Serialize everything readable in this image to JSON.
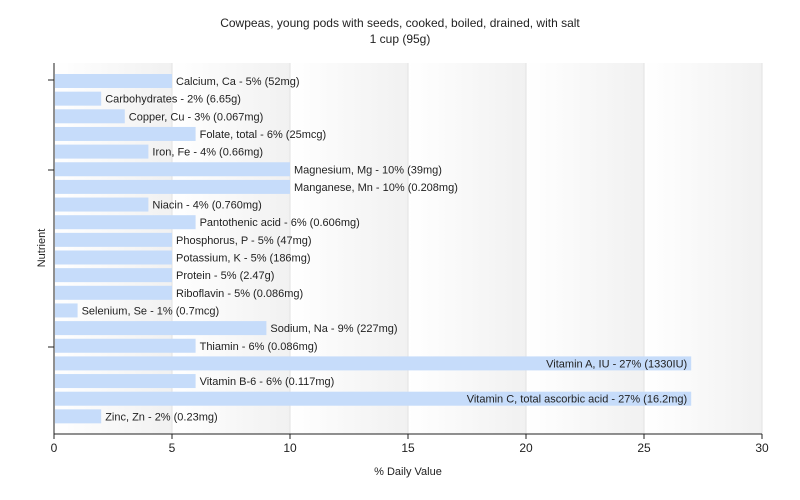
{
  "chart_data": {
    "type": "bar",
    "orientation": "horizontal",
    "title": "Cowpeas, young pods with seeds, cooked, boiled, drained, with salt",
    "subtitle": "1 cup (95g)",
    "xlabel": "% Daily Value",
    "ylabel": "Nutrient",
    "xlim": [
      0,
      30
    ],
    "xticks": [
      0,
      5,
      10,
      15,
      20,
      25,
      30
    ],
    "grid": "vertical",
    "bar_color": "#c6dcfa",
    "categories": [
      "Calcium, Ca",
      "Carbohydrates",
      "Copper, Cu",
      "Folate, total",
      "Iron, Fe",
      "Magnesium, Mg",
      "Manganese, Mn",
      "Niacin",
      "Pantothenic acid",
      "Phosphorus, P",
      "Potassium, K",
      "Protein",
      "Riboflavin",
      "Selenium, Se",
      "Sodium, Na",
      "Thiamin",
      "Vitamin A, IU",
      "Vitamin B-6",
      "Vitamin C, total ascorbic acid",
      "Zinc, Zn"
    ],
    "values": [
      5,
      2,
      3,
      6,
      4,
      10,
      10,
      4,
      6,
      5,
      5,
      5,
      5,
      1,
      9,
      6,
      27,
      6,
      27,
      2
    ],
    "labels": [
      "Calcium, Ca - 5% (52mg)",
      "Carbohydrates - 2% (6.65g)",
      "Copper, Cu - 3% (0.067mg)",
      "Folate, total - 6% (25mcg)",
      "Iron, Fe - 4% (0.66mg)",
      "Magnesium, Mg - 10% (39mg)",
      "Manganese, Mn - 10% (0.208mg)",
      "Niacin - 4% (0.760mg)",
      "Pantothenic acid - 6% (0.606mg)",
      "Phosphorus, P - 5% (47mg)",
      "Potassium, K - 5% (186mg)",
      "Protein - 5% (2.47g)",
      "Riboflavin - 5% (0.086mg)",
      "Selenium, Se - 1% (0.7mcg)",
      "Sodium, Na - 9% (227mg)",
      "Thiamin - 6% (0.086mg)",
      "Vitamin A, IU - 27% (1330IU)",
      "Vitamin B-6 - 6% (0.117mg)",
      "Vitamin C, total ascorbic acid - 27% (16.2mg)",
      "Zinc, Zn - 2% (0.23mg)"
    ]
  }
}
